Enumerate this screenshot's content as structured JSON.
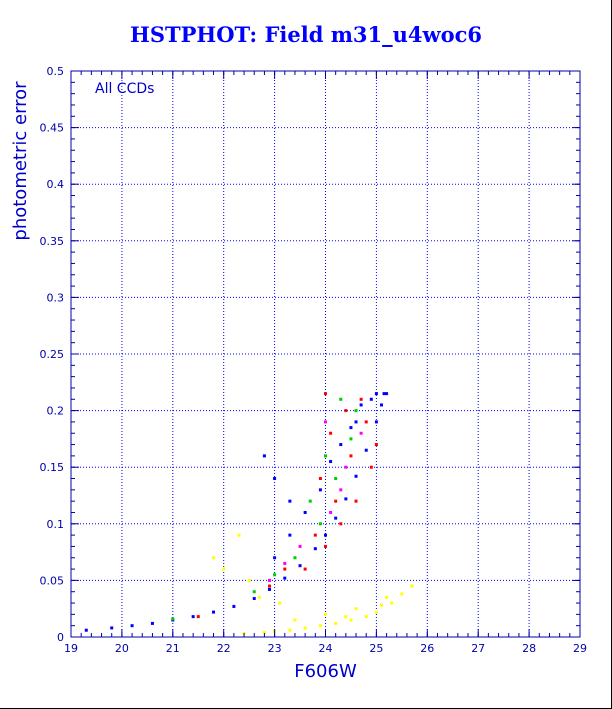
{
  "chart_data": {
    "type": "scatter",
    "title": "HSTPHOT: Field m31_u4woc6",
    "xlabel": "F606W",
    "ylabel": "photometric error",
    "annotation": "All CCDs",
    "xlim": [
      19,
      29
    ],
    "ylim": [
      0,
      0.5
    ],
    "x_ticks": [
      "19",
      "20",
      "21",
      "22",
      "23",
      "24",
      "25",
      "26",
      "27",
      "28",
      "29"
    ],
    "y_ticks": [
      "0",
      "0.05",
      "0.1",
      "0.15",
      "0.2",
      "0.25",
      "0.3",
      "0.35",
      "0.4",
      "0.45",
      "0.5"
    ],
    "grid": true,
    "colors": {
      "frame": "#0000aa",
      "grid": "#0000ff",
      "main_locus": "#0000ff",
      "secondary": [
        "#ff0000",
        "#00cc00",
        "#ff00ff"
      ],
      "lower_branch": "#ffff00"
    },
    "series": [
      {
        "color": "#0000ff",
        "points": [
          [
            19.3,
            0.006
          ],
          [
            19.8,
            0.008
          ],
          [
            20.2,
            0.01
          ],
          [
            20.6,
            0.012
          ],
          [
            21.0,
            0.015
          ],
          [
            21.4,
            0.018
          ],
          [
            21.8,
            0.022
          ],
          [
            22.2,
            0.027
          ],
          [
            22.6,
            0.034
          ],
          [
            22.9,
            0.042
          ],
          [
            23.2,
            0.052
          ],
          [
            23.5,
            0.063
          ],
          [
            23.8,
            0.078
          ],
          [
            24.0,
            0.09
          ],
          [
            24.2,
            0.105
          ],
          [
            24.4,
            0.122
          ],
          [
            24.6,
            0.142
          ],
          [
            24.8,
            0.165
          ],
          [
            25.0,
            0.19
          ],
          [
            25.1,
            0.205
          ],
          [
            25.2,
            0.215
          ],
          [
            24.9,
            0.21
          ],
          [
            24.6,
            0.19
          ],
          [
            24.3,
            0.17
          ],
          [
            24.1,
            0.155
          ],
          [
            23.9,
            0.13
          ],
          [
            23.6,
            0.11
          ],
          [
            23.3,
            0.09
          ],
          [
            23.0,
            0.07
          ],
          [
            22.8,
            0.16
          ],
          [
            23.0,
            0.14
          ],
          [
            23.3,
            0.12
          ],
          [
            25.15,
            0.215
          ],
          [
            25.0,
            0.215
          ],
          [
            24.7,
            0.205
          ],
          [
            24.5,
            0.185
          ]
        ]
      },
      {
        "color": "#ff0000",
        "points": [
          [
            23.6,
            0.06
          ],
          [
            24.0,
            0.08
          ],
          [
            24.3,
            0.1
          ],
          [
            24.6,
            0.12
          ],
          [
            24.9,
            0.15
          ],
          [
            25.0,
            0.17
          ],
          [
            23.8,
            0.09
          ],
          [
            24.2,
            0.12
          ],
          [
            24.5,
            0.16
          ],
          [
            24.8,
            0.19
          ],
          [
            24.0,
            0.215
          ],
          [
            24.4,
            0.2
          ],
          [
            22.9,
            0.045
          ],
          [
            23.2,
            0.06
          ],
          [
            21.5,
            0.018
          ],
          [
            23.9,
            0.14
          ],
          [
            24.1,
            0.18
          ],
          [
            24.7,
            0.21
          ]
        ]
      },
      {
        "color": "#00cc00",
        "points": [
          [
            23.4,
            0.07
          ],
          [
            23.9,
            0.1
          ],
          [
            24.2,
            0.14
          ],
          [
            24.5,
            0.175
          ],
          [
            23.0,
            0.055
          ],
          [
            22.6,
            0.04
          ],
          [
            24.3,
            0.21
          ],
          [
            23.7,
            0.12
          ],
          [
            24.6,
            0.2
          ],
          [
            21.0,
            0.016
          ],
          [
            24.0,
            0.16
          ]
        ]
      },
      {
        "color": "#ff00ff",
        "points": [
          [
            23.5,
            0.08
          ],
          [
            24.1,
            0.11
          ],
          [
            24.4,
            0.15
          ],
          [
            24.7,
            0.18
          ],
          [
            23.2,
            0.065
          ],
          [
            24.0,
            0.19
          ],
          [
            22.9,
            0.05
          ],
          [
            24.3,
            0.13
          ]
        ]
      },
      {
        "color": "#ffff00",
        "points": [
          [
            22.4,
            0.003
          ],
          [
            22.8,
            0.004
          ],
          [
            23.0,
            0.005
          ],
          [
            23.3,
            0.006
          ],
          [
            23.6,
            0.008
          ],
          [
            23.9,
            0.01
          ],
          [
            24.2,
            0.012
          ],
          [
            24.5,
            0.015
          ],
          [
            24.8,
            0.018
          ],
          [
            25.0,
            0.022
          ],
          [
            25.3,
            0.03
          ],
          [
            25.5,
            0.038
          ],
          [
            25.7,
            0.045
          ],
          [
            22.0,
            0.06
          ],
          [
            22.3,
            0.09
          ],
          [
            22.5,
            0.05
          ],
          [
            23.1,
            0.03
          ],
          [
            24.0,
            0.02
          ],
          [
            24.6,
            0.025
          ],
          [
            25.2,
            0.035
          ],
          [
            21.8,
            0.07
          ],
          [
            22.7,
            0.035
          ],
          [
            23.4,
            0.015
          ],
          [
            24.4,
            0.018
          ],
          [
            25.1,
            0.028
          ]
        ]
      }
    ]
  }
}
